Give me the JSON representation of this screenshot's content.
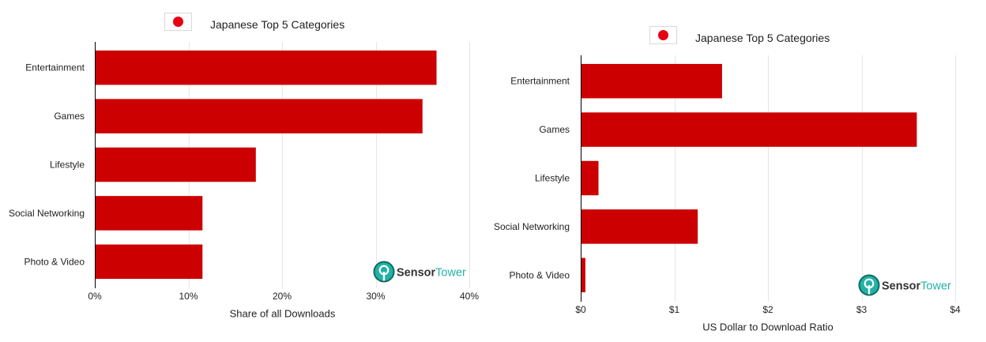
{
  "chart_data": [
    {
      "type": "bar",
      "orientation": "horizontal",
      "title": "Japanese Top 5 Categories",
      "categories": [
        "Entertainment",
        "Games",
        "Lifestyle",
        "Social Networking",
        "Photo & Video"
      ],
      "values": [
        36.5,
        35.0,
        17.2,
        11.5,
        11.5
      ],
      "xlabel": "Share of all Downloads",
      "xlim": [
        0,
        40
      ],
      "xticks": [
        0,
        10,
        20,
        30,
        40
      ],
      "xtick_labels": [
        "0%",
        "10%",
        "20%",
        "30%",
        "40%"
      ],
      "grid": true
    },
    {
      "type": "bar",
      "orientation": "horizontal",
      "title": "Japanese Top 5 Categories",
      "categories": [
        "Entertainment",
        "Games",
        "Lifestyle",
        "Social Networking",
        "Photo & Video"
      ],
      "values": [
        1.51,
        3.59,
        0.19,
        1.25,
        0.05
      ],
      "xlabel": "US Dollar to Download Ratio",
      "xlim": [
        0,
        4
      ],
      "xticks": [
        0,
        1,
        2,
        3,
        4
      ],
      "xtick_labels": [
        "$0",
        "$1",
        "$2",
        "$3",
        "$4"
      ],
      "grid": true
    }
  ],
  "logo": {
    "part1": "Sensor",
    "part2": "Tower"
  },
  "icons": {
    "flag": "japan-flag-icon",
    "logo": "sensortower-logo-icon"
  },
  "colors": {
    "bar": "#cc0000",
    "grid": "#e6e6e6",
    "axis": "#000000",
    "flag_red": "#e60012",
    "flag_border": "#d9d9d9",
    "logo_teal": "#22b2a5",
    "logo_outline": "#0e6b62",
    "logo_dark": "#333333"
  }
}
